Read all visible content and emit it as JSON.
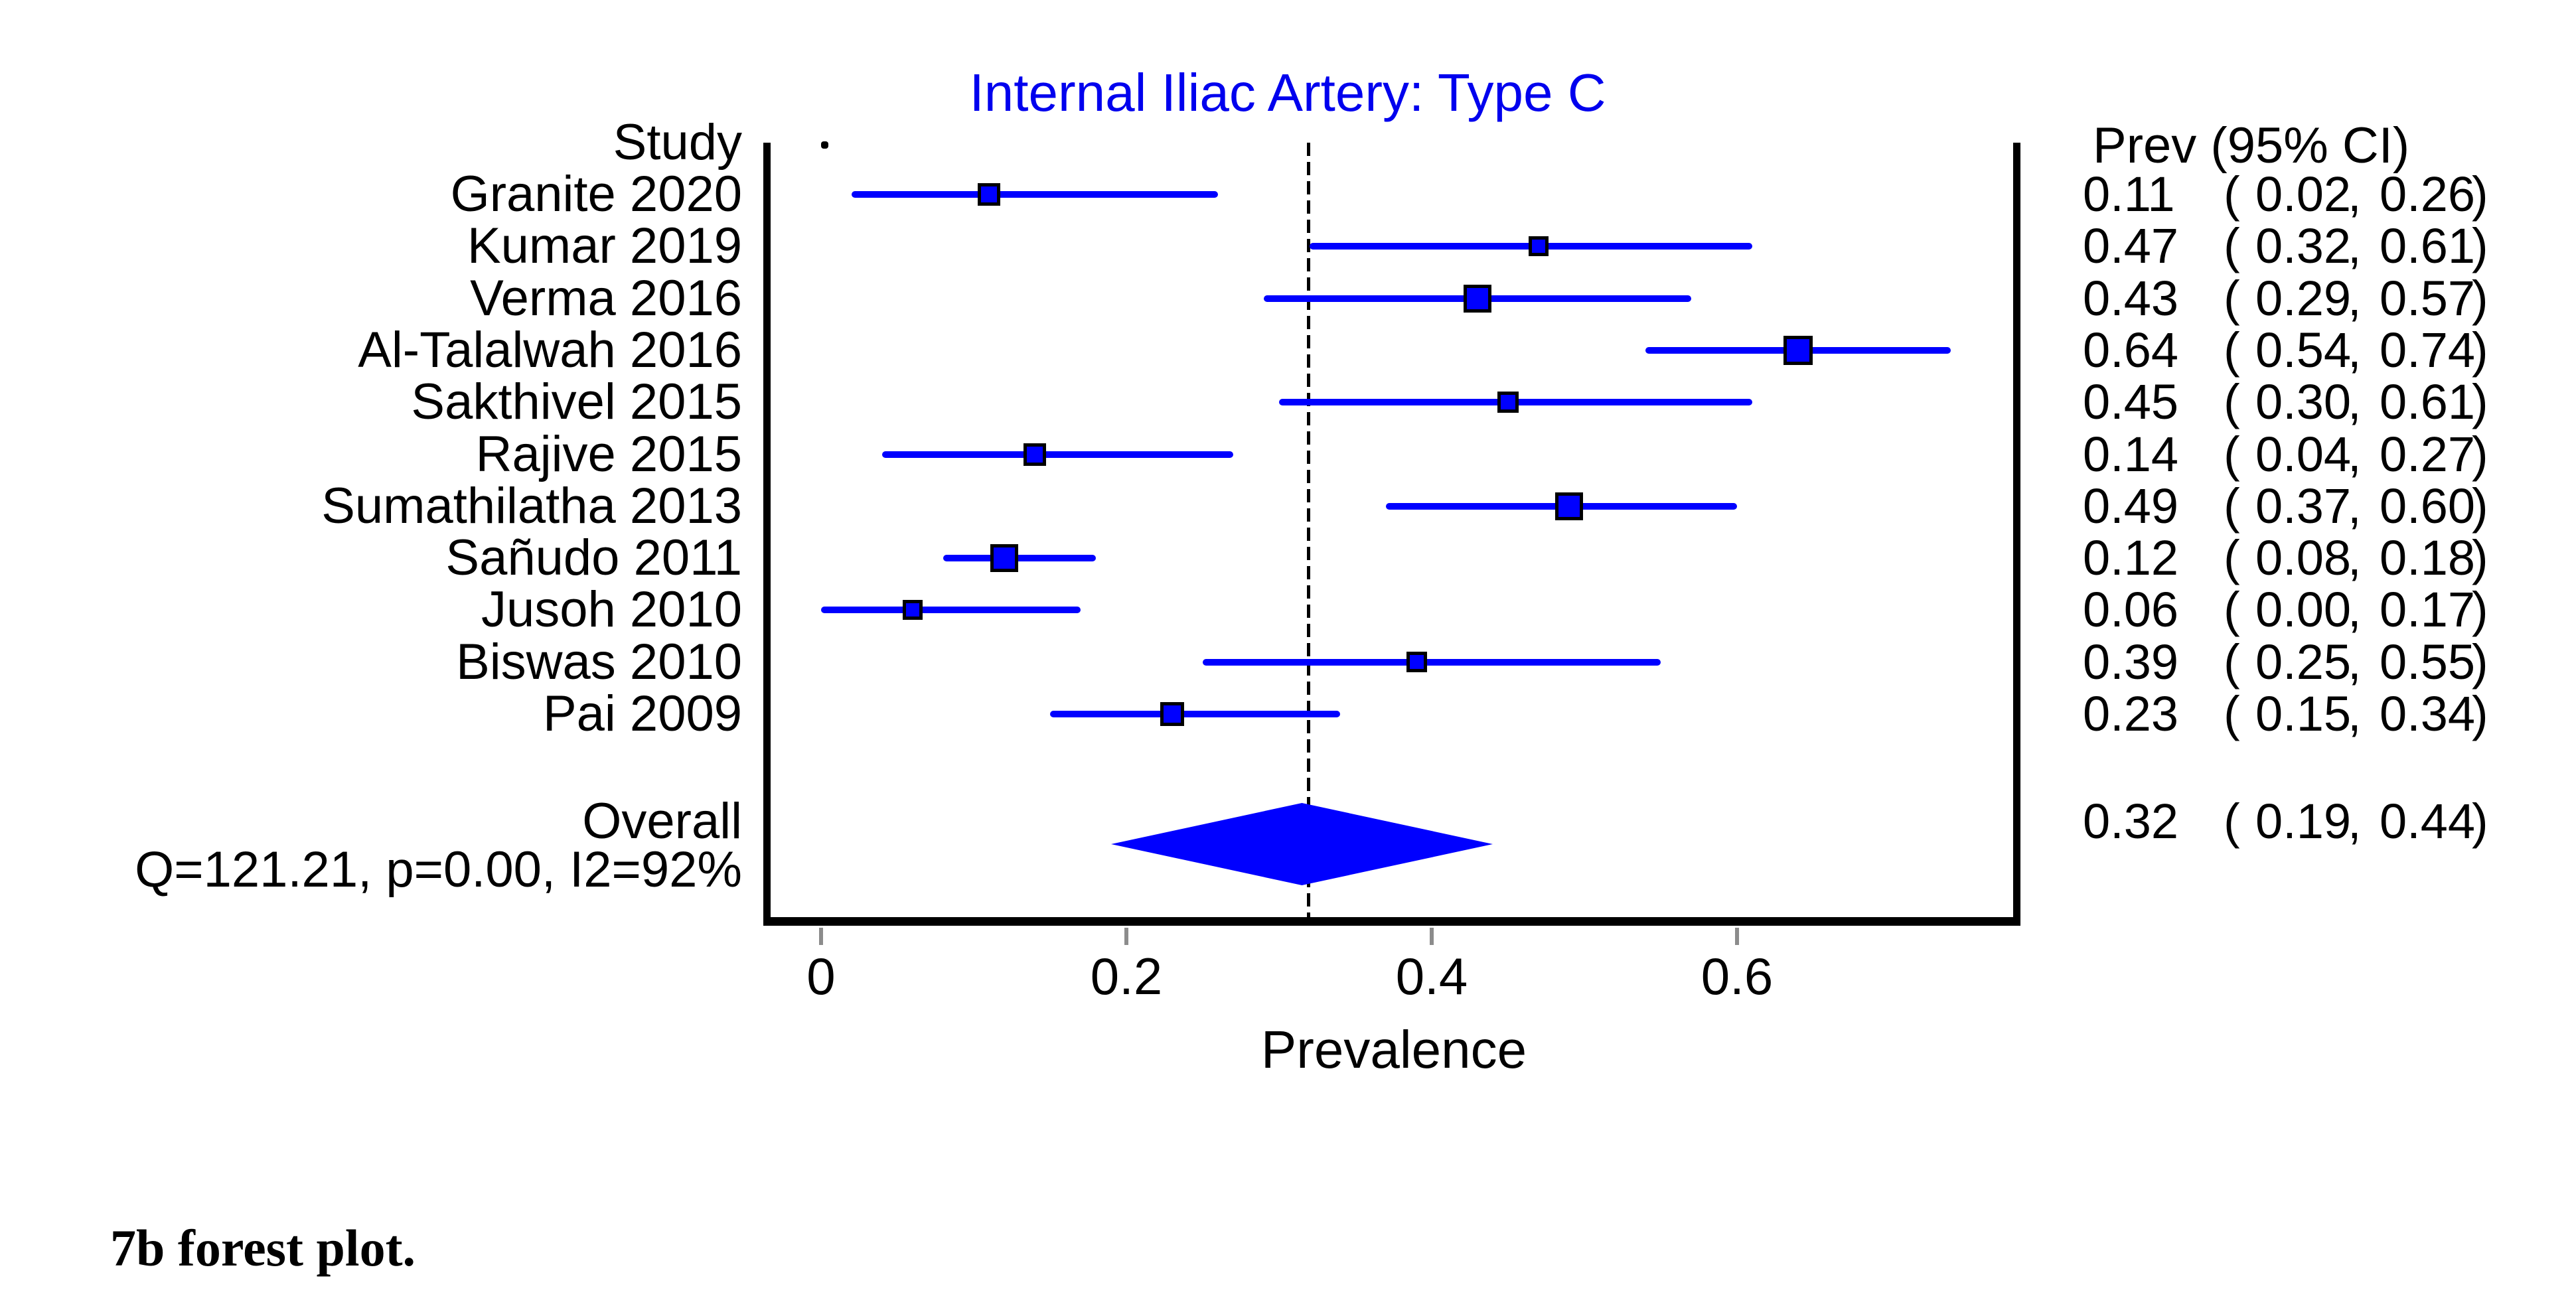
{
  "title": "Internal Iliac Artery: Type C",
  "columns": {
    "study_header": "Study",
    "ci_header": "Prev (95% CI)"
  },
  "axis": {
    "label": "Prevalence",
    "tick_labels": [
      "0",
      "0.2",
      "0.4",
      "0.6"
    ],
    "tick_values": [
      0,
      0.2,
      0.4,
      0.6
    ]
  },
  "heterogeneity_text": "Q=121.21, p=0.00, I2=92%",
  "caption": "7b forest plot.",
  "colors": {
    "series_blue": "#0000FF",
    "title_blue": "#0000EE",
    "tick_gray": "#8C8C8C",
    "text_black": "#000000"
  },
  "chart_data": {
    "type": "forest",
    "title": "Internal Iliac Artery: Type C",
    "xlabel": "Prevalence",
    "value_column_header": "Prev (95% CI)",
    "x_ticks": [
      0,
      0.2,
      0.4,
      0.6
    ],
    "xlim": [
      -0.04,
      0.78
    ],
    "null_line_at": 0.32,
    "grid": false,
    "studies": [
      {
        "name": "Granite 2020",
        "est": 0.11,
        "lo": 0.02,
        "hi": 0.26,
        "marker_size": 34
      },
      {
        "name": "Kumar 2019",
        "est": 0.47,
        "lo": 0.32,
        "hi": 0.61,
        "marker_size": 30
      },
      {
        "name": "Verma 2016",
        "est": 0.43,
        "lo": 0.29,
        "hi": 0.57,
        "marker_size": 42
      },
      {
        "name": "Al-Talalwah 2016",
        "est": 0.64,
        "lo": 0.54,
        "hi": 0.74,
        "marker_size": 44
      },
      {
        "name": "Sakthivel 2015",
        "est": 0.45,
        "lo": 0.3,
        "hi": 0.61,
        "marker_size": 32
      },
      {
        "name": "Rajive 2015",
        "est": 0.14,
        "lo": 0.04,
        "hi": 0.27,
        "marker_size": 34
      },
      {
        "name": "Sumathilatha 2013",
        "est": 0.49,
        "lo": 0.37,
        "hi": 0.6,
        "marker_size": 42
      },
      {
        "name": "Sañudo 2011",
        "est": 0.12,
        "lo": 0.08,
        "hi": 0.18,
        "marker_size": 42
      },
      {
        "name": "Jusoh 2010",
        "est": 0.06,
        "lo": 0.0,
        "hi": 0.17,
        "marker_size": 30
      },
      {
        "name": "Biswas 2010",
        "est": 0.39,
        "lo": 0.25,
        "hi": 0.55,
        "marker_size": 31
      },
      {
        "name": "Pai 2009",
        "est": 0.23,
        "lo": 0.15,
        "hi": 0.34,
        "marker_size": 36
      }
    ],
    "overall": {
      "name": "Overall",
      "est": 0.32,
      "lo": 0.19,
      "hi": 0.44
    },
    "heterogeneity": {
      "Q": 121.21,
      "p": 0.0,
      "I2": "92%"
    }
  }
}
